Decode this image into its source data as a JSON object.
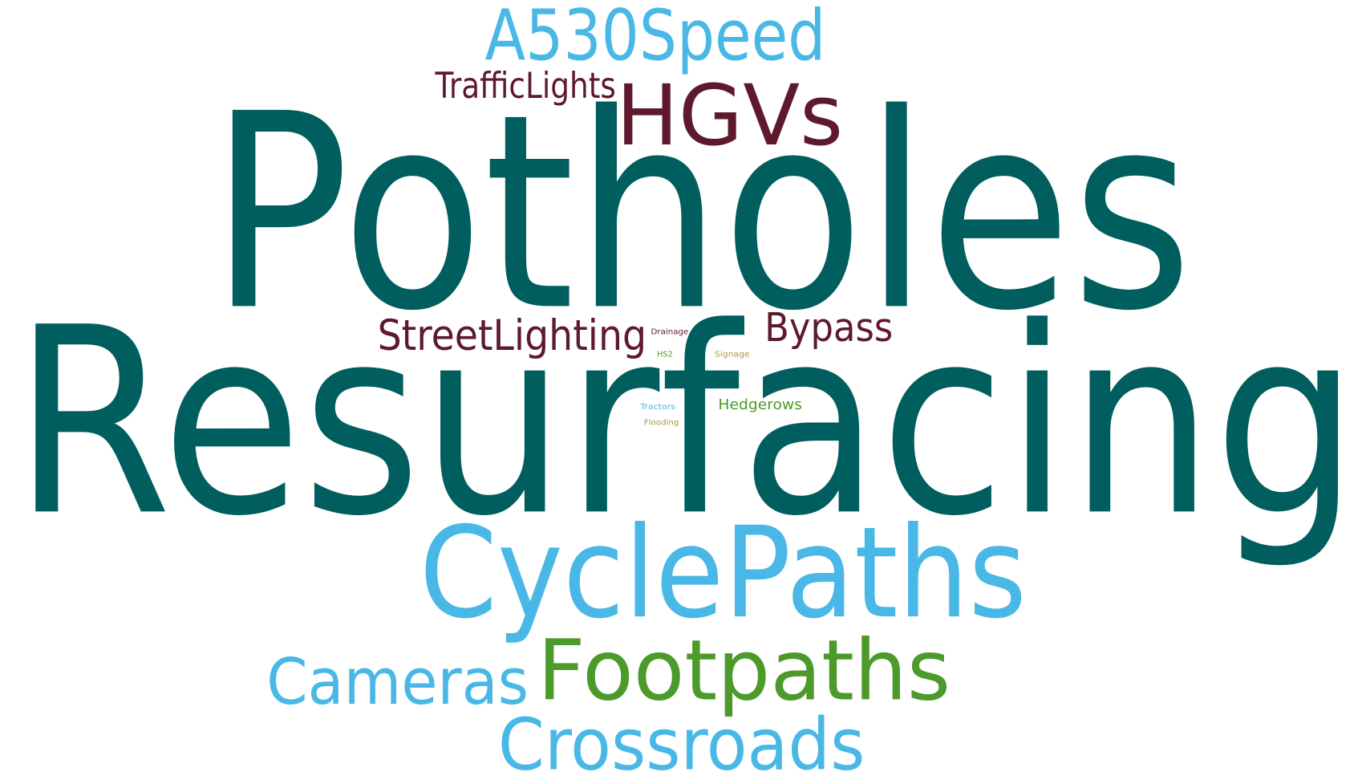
{
  "words": [
    "Potholes",
    "Resurfacing",
    "A530Speed",
    "TrafficLights",
    "HGVs",
    "StreetLighting",
    "Bypass",
    "Drainage",
    "HS2",
    "Signage",
    "Tractors",
    "Hedgerows",
    "Flooding",
    "CyclePaths",
    "Cameras",
    "Footpaths",
    "Crossroads"
  ]
}
